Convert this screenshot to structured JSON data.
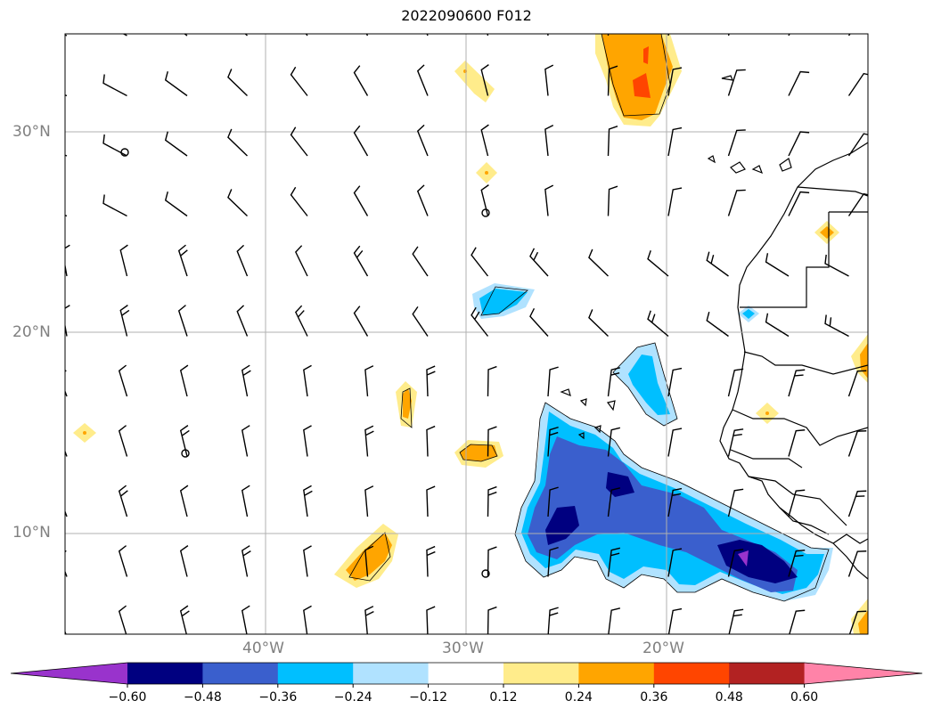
{
  "title": "2022090600 F012",
  "lat_labels": [
    "30°N",
    "20°N",
    "10°N"
  ],
  "lon_labels": [
    "40°W",
    "30°W",
    "20°W"
  ],
  "colorbar": {
    "ticks": [
      "−0.60",
      "−0.48",
      "−0.36",
      "−0.24",
      "−0.12",
      "0.12",
      "0.24",
      "0.36",
      "0.48",
      "0.60"
    ],
    "colors": [
      "#9933cc",
      "#000080",
      "#3a5fcd",
      "#00bfff",
      "#b0e2ff",
      "#ffffff",
      "#ffec8b",
      "#ffa500",
      "#ff4500",
      "#b22222",
      "#ff83a8"
    ]
  }
}
